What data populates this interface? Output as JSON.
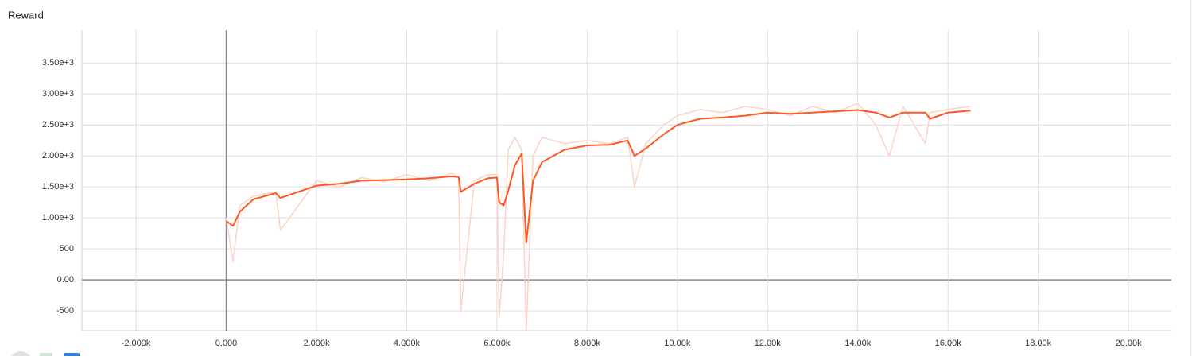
{
  "chart_data": {
    "type": "line",
    "title": "Reward",
    "x": [
      0,
      150,
      300,
      600,
      1100,
      1200,
      2000,
      2500,
      3000,
      3500,
      4000,
      4500,
      5000,
      5150,
      5200,
      5500,
      5800,
      6000,
      6050,
      6150,
      6250,
      6400,
      6550,
      6650,
      6800,
      7000,
      7500,
      8000,
      8500,
      8900,
      9050,
      9300,
      9700,
      10000,
      10500,
      11000,
      11500,
      12000,
      12500,
      13000,
      13500,
      14000,
      14400,
      14700,
      15000,
      15500,
      15600,
      16000,
      16500
    ],
    "series": [
      {
        "color": "#fbd3c6",
        "values": [
          1000,
          300,
          1200,
          1350,
          1420,
          800,
          1600,
          1500,
          1650,
          1580,
          1700,
          1600,
          1720,
          1650,
          -500,
          1600,
          1700,
          1700,
          -600,
          400,
          2100,
          2300,
          2100,
          -820,
          2000,
          2300,
          2200,
          2250,
          2200,
          2300,
          1500,
          2200,
          2500,
          2650,
          2750,
          2700,
          2800,
          2750,
          2650,
          2800,
          2700,
          2850,
          2500,
          2000,
          2800,
          2200,
          2700,
          2750,
          2800
        ]
      },
      {
        "color": "#ff5722",
        "values": [
          950,
          870,
          1100,
          1300,
          1400,
          1320,
          1520,
          1550,
          1600,
          1610,
          1620,
          1640,
          1670,
          1660,
          1420,
          1550,
          1640,
          1650,
          1250,
          1200,
          1440,
          1850,
          2040,
          600,
          1600,
          1900,
          2100,
          2170,
          2180,
          2250,
          2000,
          2120,
          2350,
          2500,
          2600,
          2620,
          2650,
          2700,
          2680,
          2700,
          2720,
          2740,
          2700,
          2620,
          2700,
          2700,
          2600,
          2700,
          2730
        ]
      }
    ],
    "xlim": [
      -3200,
      20950
    ],
    "ylim": [
      -820,
      4030
    ],
    "xticks": [
      {
        "value": -2000,
        "label": "-2.000k"
      },
      {
        "value": 0,
        "label": "0.000"
      },
      {
        "value": 2000,
        "label": "2.000k"
      },
      {
        "value": 4000,
        "label": "4.000k"
      },
      {
        "value": 6000,
        "label": "6.000k"
      },
      {
        "value": 8000,
        "label": "8.000k"
      },
      {
        "value": 10000,
        "label": "10.00k"
      },
      {
        "value": 12000,
        "label": "12.00k"
      },
      {
        "value": 14000,
        "label": "14.00k"
      },
      {
        "value": 16000,
        "label": "16.00k"
      },
      {
        "value": 18000,
        "label": "18.00k"
      },
      {
        "value": 20000,
        "label": "20.00k"
      }
    ],
    "yticks": [
      -500,
      {
        "value": 0,
        "label": "0.00"
      },
      500,
      {
        "value": 1000,
        "label": "1.00e+3"
      },
      {
        "value": 1500,
        "label": "1.50e+3"
      },
      {
        "value": 2000,
        "label": "2.00e+3"
      },
      {
        "value": 2500,
        "label": "2.50e+3"
      },
      {
        "value": 3000,
        "label": "3.00e+3"
      },
      {
        "value": 3500,
        "label": "3.50e+3"
      }
    ],
    "grid": true
  }
}
